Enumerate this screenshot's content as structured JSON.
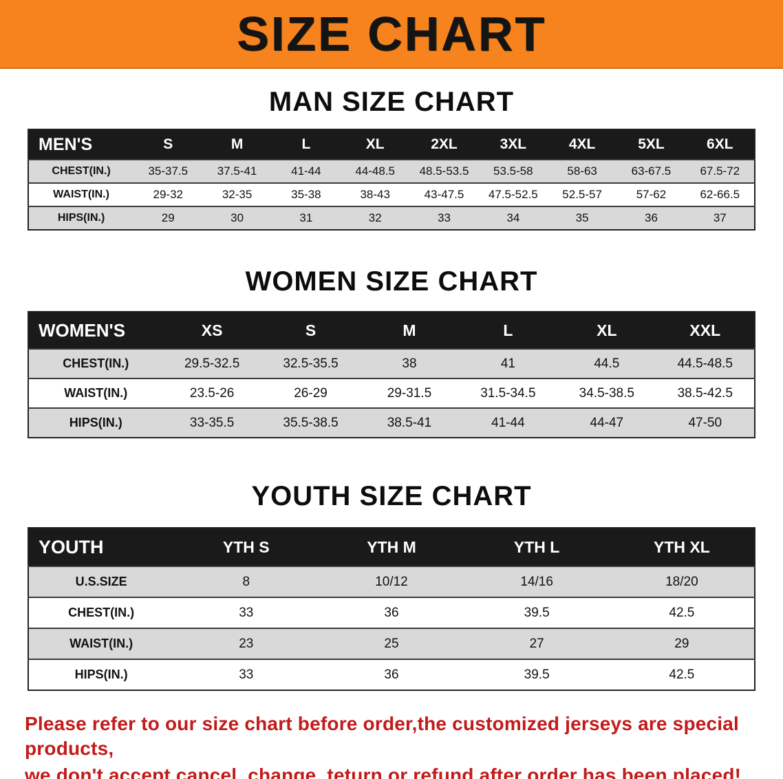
{
  "banner": {
    "title": "SIZE CHART"
  },
  "theme": {
    "banner_bg": "#f6831d",
    "banner_text": "#141414",
    "header_bar": "#1a1a1a",
    "shaded_row": "#d9d9d9",
    "disclaimer_color": "#c31a1a"
  },
  "sections": [
    {
      "heading": "MAN SIZE CHART",
      "table": {
        "corner": "MEN'S",
        "columns": [
          "S",
          "M",
          "L",
          "XL",
          "2XL",
          "3XL",
          "4XL",
          "5XL",
          "6XL"
        ],
        "rows": [
          {
            "label": "CHEST(IN.)",
            "values": [
              "35-37.5",
              "37.5-41",
              "41-44",
              "44-48.5",
              "48.5-53.5",
              "53.5-58",
              "58-63",
              "63-67.5",
              "67.5-72"
            ]
          },
          {
            "label": "WAIST(IN.)",
            "values": [
              "29-32",
              "32-35",
              "35-38",
              "38-43",
              "43-47.5",
              "47.5-52.5",
              "52.5-57",
              "57-62",
              "62-66.5"
            ]
          },
          {
            "label": "HIPS(IN.)",
            "values": [
              "29",
              "30",
              "31",
              "32",
              "33",
              "34",
              "35",
              "36",
              "37"
            ]
          }
        ]
      }
    },
    {
      "heading": "WOMEN SIZE CHART",
      "table": {
        "corner": "WOMEN'S",
        "columns": [
          "XS",
          "S",
          "M",
          "L",
          "XL",
          "XXL"
        ],
        "rows": [
          {
            "label": "CHEST(IN.)",
            "values": [
              "29.5-32.5",
              "32.5-35.5",
              "38",
              "41",
              "44.5",
              "44.5-48.5"
            ]
          },
          {
            "label": "WAIST(IN.)",
            "values": [
              "23.5-26",
              "26-29",
              "29-31.5",
              "31.5-34.5",
              "34.5-38.5",
              "38.5-42.5"
            ]
          },
          {
            "label": "HIPS(IN.)",
            "values": [
              "33-35.5",
              "35.5-38.5",
              "38.5-41",
              "41-44",
              "44-47",
              "47-50"
            ]
          }
        ]
      }
    },
    {
      "heading": "YOUTH SIZE CHART",
      "table": {
        "corner": "YOUTH",
        "columns": [
          "YTH S",
          "YTH M",
          "YTH L",
          "YTH XL"
        ],
        "rows": [
          {
            "label": "U.S.SIZE",
            "values": [
              "8",
              "10/12",
              "14/16",
              "18/20"
            ]
          },
          {
            "label": "CHEST(IN.)",
            "values": [
              "33",
              "36",
              "39.5",
              "42.5"
            ]
          },
          {
            "label": "WAIST(IN.)",
            "values": [
              "23",
              "25",
              "27",
              "29"
            ]
          },
          {
            "label": "HIPS(IN.)",
            "values": [
              "33",
              "36",
              "39.5",
              "42.5"
            ]
          }
        ]
      }
    }
  ],
  "disclaimer": {
    "line1": "Please refer to our size chart before order,the customized jerseys are special products,",
    "line2": "we don't accept cancel, change, teturn or refund after order has been placed!"
  }
}
